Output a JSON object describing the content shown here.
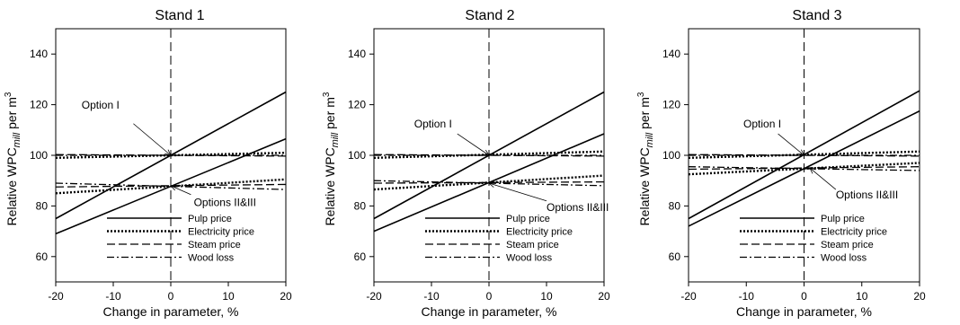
{
  "chart_data": [
    {
      "type": "line",
      "title": "Stand 1",
      "xlabel": "Change in parameter, %",
      "ylabel": {
        "main": "Relative WPC",
        "sub": "mill",
        "tail": " per m",
        "sup": "3"
      },
      "xlim": [
        -20,
        20
      ],
      "ylim": [
        50,
        150
      ],
      "xticks": [
        "-20",
        "-10",
        "0",
        "10",
        "20"
      ],
      "yticks": [
        "60",
        "80",
        "100",
        "120",
        "140"
      ],
      "grid": false,
      "legend_position": "bottom-center",
      "legend": [
        "Pulp price",
        "Electricity price",
        "Steam price",
        "Wood loss"
      ],
      "annotations": [
        {
          "text": "Option I",
          "target": [
            0,
            100
          ]
        },
        {
          "text": "Options II&III",
          "target": [
            0,
            88
          ]
        }
      ],
      "groups": [
        {
          "label": "Option I",
          "series": [
            {
              "name": "Pulp price",
              "x": [
                -20,
                20
              ],
              "y": [
                75,
                125
              ]
            },
            {
              "name": "Electricity price",
              "x": [
                -20,
                20
              ],
              "y": [
                99,
                101
              ]
            },
            {
              "name": "Steam price",
              "x": [
                -20,
                20
              ],
              "y": [
                100.3,
                99.7
              ]
            },
            {
              "name": "Wood loss",
              "x": [
                -20,
                20
              ],
              "y": [
                100,
                100
              ]
            }
          ]
        },
        {
          "label": "Options II&III",
          "series": [
            {
              "name": "Pulp price",
              "x": [
                -20,
                20
              ],
              "y": [
                69,
                106.5
              ]
            },
            {
              "name": "Electricity price",
              "x": [
                -20,
                20
              ],
              "y": [
                85,
                90.5
              ]
            },
            {
              "name": "Steam price",
              "x": [
                -20,
                20
              ],
              "y": [
                87.5,
                88.5
              ]
            },
            {
              "name": "Wood loss",
              "x": [
                -20,
                20
              ],
              "y": [
                89,
                86.5
              ]
            }
          ]
        }
      ]
    },
    {
      "type": "line",
      "title": "Stand 2",
      "xlabel": "Change in parameter, %",
      "ylabel": {
        "main": "Relative WPC",
        "sub": "mill",
        "tail": " per m",
        "sup": "3"
      },
      "xlim": [
        -20,
        20
      ],
      "ylim": [
        50,
        150
      ],
      "xticks": [
        "-20",
        "-10",
        "0",
        "10",
        "20"
      ],
      "yticks": [
        "60",
        "80",
        "100",
        "120",
        "140"
      ],
      "grid": false,
      "legend_position": "bottom-center",
      "legend": [
        "Pulp price",
        "Electricity price",
        "Steam price",
        "Wood loss"
      ],
      "annotations": [
        {
          "text": "Option I",
          "target": [
            0,
            100
          ]
        },
        {
          "text": "Options II&III",
          "target": [
            0,
            89
          ]
        }
      ],
      "groups": [
        {
          "label": "Option I",
          "series": [
            {
              "name": "Pulp price",
              "x": [
                -20,
                20
              ],
              "y": [
                75,
                125
              ]
            },
            {
              "name": "Electricity price",
              "x": [
                -20,
                20
              ],
              "y": [
                99,
                101.5
              ]
            },
            {
              "name": "Steam price",
              "x": [
                -20,
                20
              ],
              "y": [
                100.3,
                99.7
              ]
            },
            {
              "name": "Wood loss",
              "x": [
                -20,
                20
              ],
              "y": [
                100,
                100
              ]
            }
          ]
        },
        {
          "label": "Options II&III",
          "series": [
            {
              "name": "Pulp price",
              "x": [
                -20,
                20
              ],
              "y": [
                70,
                108.5
              ]
            },
            {
              "name": "Electricity price",
              "x": [
                -20,
                20
              ],
              "y": [
                86.5,
                92
              ]
            },
            {
              "name": "Steam price",
              "x": [
                -20,
                20
              ],
              "y": [
                89,
                89.5
              ]
            },
            {
              "name": "Wood loss",
              "x": [
                -20,
                20
              ],
              "y": [
                90,
                88
              ]
            }
          ]
        }
      ]
    },
    {
      "type": "line",
      "title": "Stand 3",
      "xlabel": "Change in parameter, %",
      "ylabel": {
        "main": "Relative WPC",
        "sub": "mill",
        "tail": " per m",
        "sup": "3"
      },
      "xlim": [
        -20,
        20
      ],
      "ylim": [
        50,
        150
      ],
      "xticks": [
        "-20",
        "-10",
        "0",
        "10",
        "20"
      ],
      "yticks": [
        "60",
        "80",
        "100",
        "120",
        "140"
      ],
      "grid": false,
      "legend_position": "bottom-center",
      "legend": [
        "Pulp price",
        "Electricity price",
        "Steam price",
        "Wood loss"
      ],
      "annotations": [
        {
          "text": "Option I",
          "target": [
            0,
            100
          ]
        },
        {
          "text": "Options II&III",
          "target": [
            1,
            95
          ]
        }
      ],
      "groups": [
        {
          "label": "Option I",
          "series": [
            {
              "name": "Pulp price",
              "x": [
                -20,
                20
              ],
              "y": [
                75,
                125.5
              ]
            },
            {
              "name": "Electricity price",
              "x": [
                -20,
                20
              ],
              "y": [
                99,
                101.5
              ]
            },
            {
              "name": "Steam price",
              "x": [
                -20,
                20
              ],
              "y": [
                100.3,
                99.7
              ]
            },
            {
              "name": "Wood loss",
              "x": [
                -20,
                20
              ],
              "y": [
                100,
                100
              ]
            }
          ]
        },
        {
          "label": "Options II&III",
          "series": [
            {
              "name": "Pulp price",
              "x": [
                -20,
                20
              ],
              "y": [
                72,
                117.5
              ]
            },
            {
              "name": "Electricity price",
              "x": [
                -20,
                20
              ],
              "y": [
                92.5,
                97
              ]
            },
            {
              "name": "Steam price",
              "x": [
                -20,
                20
              ],
              "y": [
                94.5,
                95.5
              ]
            },
            {
              "name": "Wood loss",
              "x": [
                -20,
                20
              ],
              "y": [
                95.5,
                94
              ]
            }
          ]
        }
      ]
    }
  ]
}
